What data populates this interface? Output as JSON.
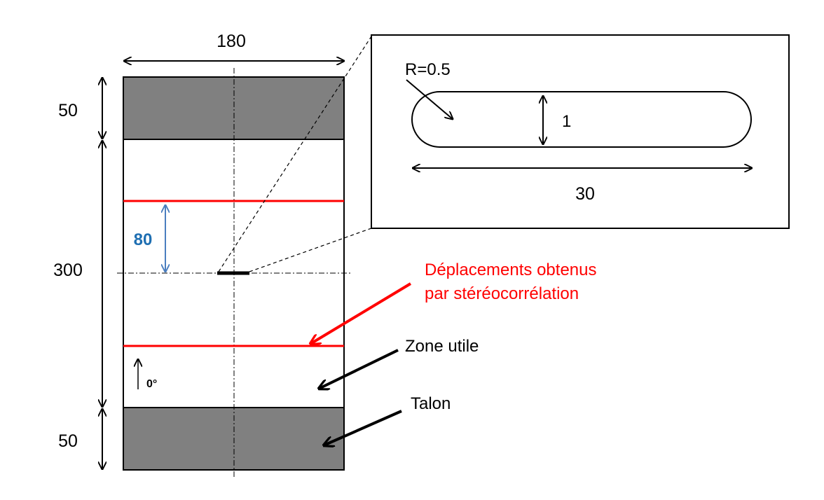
{
  "colors": {
    "grip": "#808080",
    "outline": "#000000",
    "red": "#ff0000",
    "blue": "#1f6fb2",
    "blue_arrow": "#4a7ebf"
  },
  "dimensions": {
    "width": "180",
    "height_top_grip": "50",
    "height_gauge": "300",
    "height_bottom_grip": "50",
    "measure_zone": "80"
  },
  "inset": {
    "radius": "R=0.5",
    "slot_height": "1",
    "slot_length": "30"
  },
  "fiber_orientation": "0°",
  "callouts": {
    "displacements": [
      "Déplacements obtenus",
      "par stéréocorrélation"
    ],
    "useful_zone": "Zone utile",
    "tab": "Talon"
  }
}
